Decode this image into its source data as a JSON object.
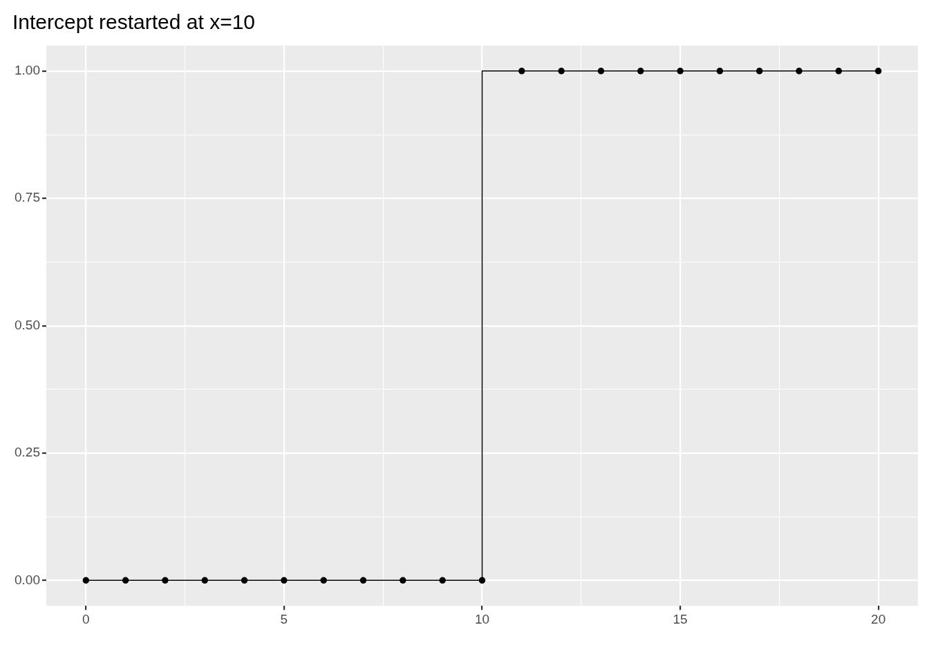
{
  "chart_data": {
    "type": "step",
    "title": "Intercept restarted at x=10",
    "x": [
      0,
      1,
      2,
      3,
      4,
      5,
      6,
      7,
      8,
      9,
      10,
      11,
      12,
      13,
      14,
      15,
      16,
      17,
      18,
      19,
      20
    ],
    "series": [
      {
        "color": "#000000",
        "values": [
          0,
          0,
          0,
          0,
          0,
          0,
          0,
          0,
          0,
          0,
          0,
          1,
          1,
          1,
          1,
          1,
          1,
          1,
          1,
          1,
          1
        ]
      }
    ],
    "xlim": [
      -1,
      21
    ],
    "xticks": [
      0,
      {
        "value": 2.5,
        "label": null
      },
      5,
      {
        "value": 7.5,
        "label": null
      },
      10,
      {
        "value": 12.5,
        "label": null
      },
      15,
      {
        "value": 17.5,
        "label": null
      },
      20
    ],
    "ylim": [
      -0.05,
      1.05
    ],
    "yticks": [
      {
        "value": 0,
        "label": "0.00"
      },
      {
        "value": 0.125,
        "label": null
      },
      {
        "value": 0.25,
        "label": "0.25"
      },
      {
        "value": 0.375,
        "label": null
      },
      {
        "value": 0.5,
        "label": "0.50"
      },
      {
        "value": 0.625,
        "label": null
      },
      {
        "value": 0.75,
        "label": "0.75"
      },
      {
        "value": 0.875,
        "label": null
      },
      {
        "value": 1,
        "label": "1.00"
      }
    ],
    "grid": true,
    "legend": false,
    "marker": "circle",
    "line_style": "solid"
  }
}
